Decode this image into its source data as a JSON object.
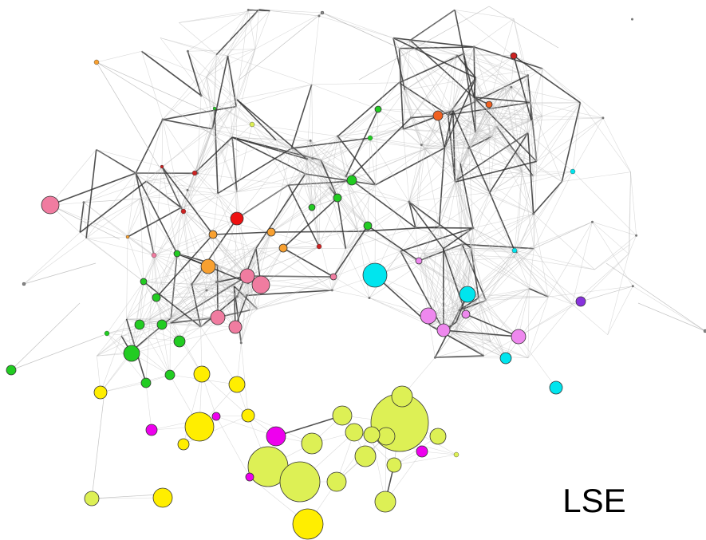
{
  "label": "LSE"
}
